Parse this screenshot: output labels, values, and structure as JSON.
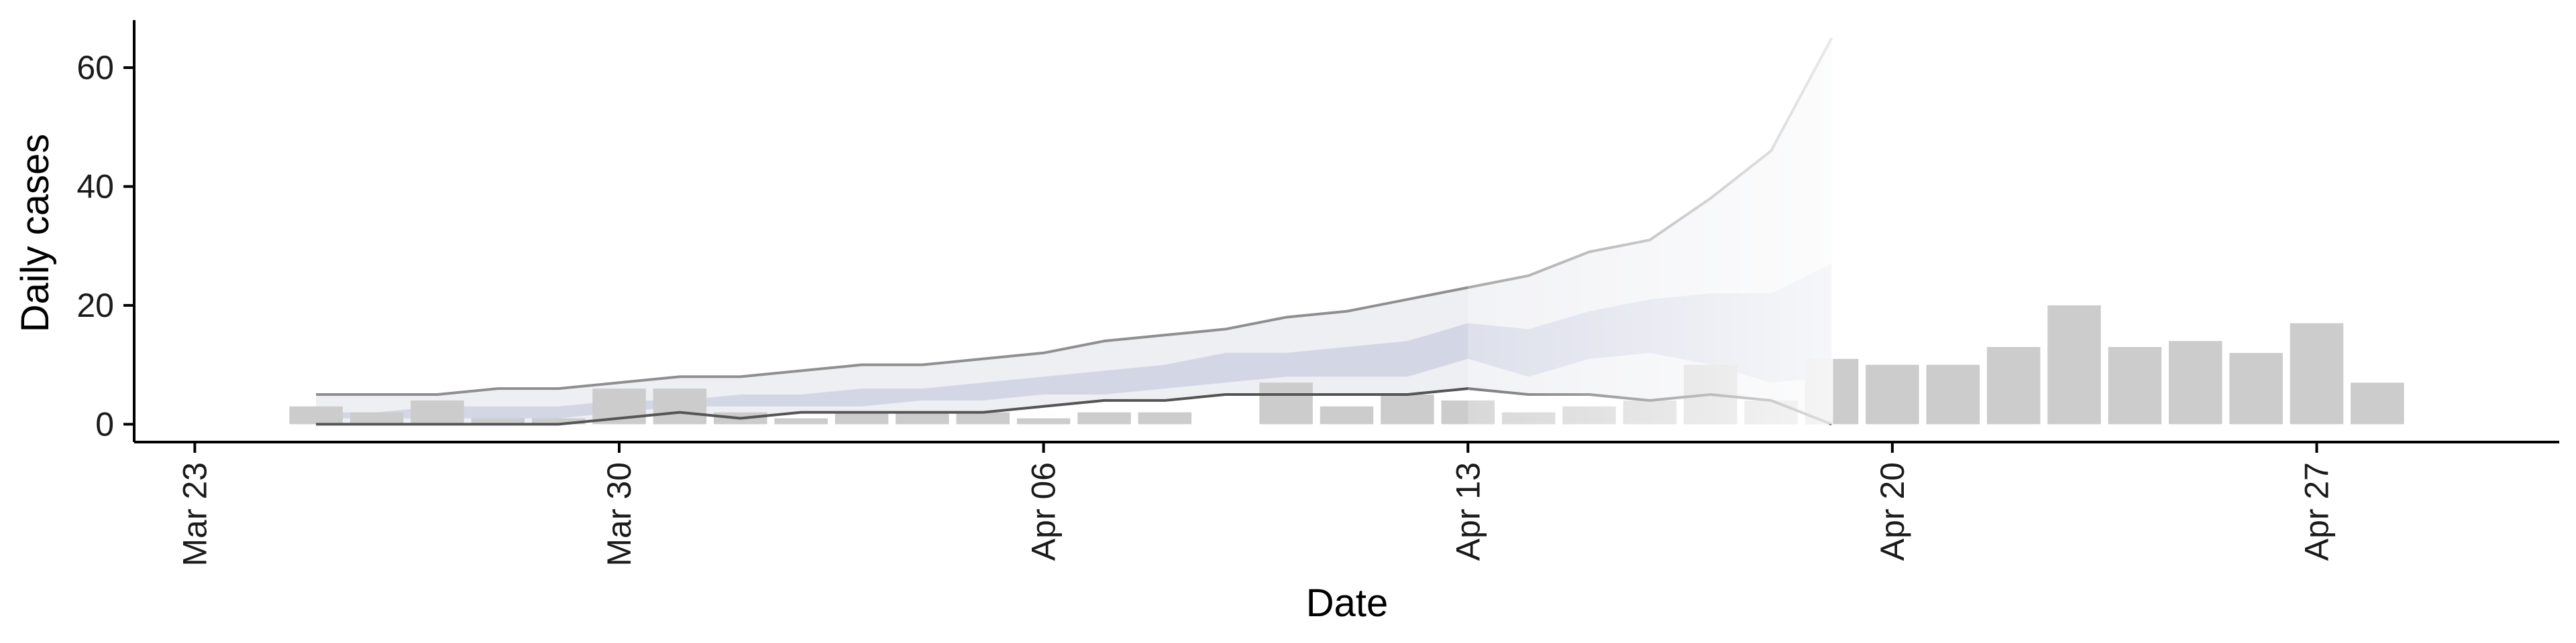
{
  "chart_data": {
    "type": "bar",
    "xlabel": "Date",
    "ylabel": "Daily cases",
    "xlim": [
      "2020-03-22",
      "2020-05-01"
    ],
    "ylim": [
      -3,
      68
    ],
    "x_ticks": [
      {
        "date": "2020-03-23",
        "label": "Mar 23"
      },
      {
        "date": "2020-03-30",
        "label": "Mar 30"
      },
      {
        "date": "2020-04-06",
        "label": "Apr 06"
      },
      {
        "date": "2020-04-13",
        "label": "Apr 13"
      },
      {
        "date": "2020-04-20",
        "label": "Apr 20"
      },
      {
        "date": "2020-04-27",
        "label": "Apr 27"
      }
    ],
    "y_ticks": [
      0,
      20,
      40,
      60
    ],
    "grid": false,
    "legend": "none",
    "bars": [
      {
        "date": "2020-03-25",
        "value": 3
      },
      {
        "date": "2020-03-26",
        "value": 2
      },
      {
        "date": "2020-03-27",
        "value": 4
      },
      {
        "date": "2020-03-28",
        "value": 1
      },
      {
        "date": "2020-03-29",
        "value": 1
      },
      {
        "date": "2020-03-30",
        "value": 6
      },
      {
        "date": "2020-03-31",
        "value": 6
      },
      {
        "date": "2020-04-01",
        "value": 2
      },
      {
        "date": "2020-04-02",
        "value": 1
      },
      {
        "date": "2020-04-03",
        "value": 2
      },
      {
        "date": "2020-04-04",
        "value": 2
      },
      {
        "date": "2020-04-05",
        "value": 2
      },
      {
        "date": "2020-04-06",
        "value": 1
      },
      {
        "date": "2020-04-07",
        "value": 2
      },
      {
        "date": "2020-04-08",
        "value": 2
      },
      {
        "date": "2020-04-10",
        "value": 7
      },
      {
        "date": "2020-04-11",
        "value": 3
      },
      {
        "date": "2020-04-12",
        "value": 5
      },
      {
        "date": "2020-04-13",
        "value": 4
      },
      {
        "date": "2020-04-14",
        "value": 2
      },
      {
        "date": "2020-04-15",
        "value": 3
      },
      {
        "date": "2020-04-16",
        "value": 4
      },
      {
        "date": "2020-04-17",
        "value": 10
      },
      {
        "date": "2020-04-18",
        "value": 4
      },
      {
        "date": "2020-04-19",
        "value": 11
      },
      {
        "date": "2020-04-20",
        "value": 10
      },
      {
        "date": "2020-04-21",
        "value": 10
      },
      {
        "date": "2020-04-22",
        "value": 13
      },
      {
        "date": "2020-04-23",
        "value": 20
      },
      {
        "date": "2020-04-24",
        "value": 13
      },
      {
        "date": "2020-04-25",
        "value": 14
      },
      {
        "date": "2020-04-26",
        "value": 12
      },
      {
        "date": "2020-04-27",
        "value": 17
      },
      {
        "date": "2020-04-28",
        "value": 7
      }
    ],
    "estimate": {
      "dates": [
        "2020-03-25",
        "2020-03-26",
        "2020-03-27",
        "2020-03-28",
        "2020-03-29",
        "2020-03-30",
        "2020-03-31",
        "2020-04-01",
        "2020-04-02",
        "2020-04-03",
        "2020-04-04",
        "2020-04-05",
        "2020-04-06",
        "2020-04-07",
        "2020-04-08",
        "2020-04-09",
        "2020-04-10",
        "2020-04-11",
        "2020-04-12",
        "2020-04-13",
        "2020-04-14",
        "2020-04-15",
        "2020-04-16",
        "2020-04-17",
        "2020-04-18",
        "2020-04-19"
      ],
      "outer_lower": [
        0,
        0,
        0,
        0,
        0,
        1,
        2,
        1,
        2,
        2,
        2,
        2,
        3,
        4,
        4,
        5,
        5,
        5,
        5,
        6,
        5,
        5,
        4,
        5,
        4,
        0
      ],
      "outer_upper": [
        5,
        5,
        5,
        6,
        6,
        7,
        8,
        8,
        9,
        10,
        10,
        11,
        12,
        14,
        15,
        16,
        18,
        19,
        21,
        23,
        25,
        29,
        31,
        38,
        46,
        65
      ],
      "inner_lower": [
        1,
        1,
        1,
        1,
        1,
        2,
        3,
        3,
        3,
        3,
        4,
        4,
        5,
        5,
        6,
        7,
        8,
        8,
        8,
        11,
        8,
        11,
        12,
        10,
        7,
        8
      ],
      "inner_upper": [
        2,
        2,
        3,
        3,
        3,
        4,
        4,
        5,
        5,
        6,
        6,
        7,
        8,
        9,
        10,
        12,
        12,
        13,
        14,
        17,
        16,
        19,
        21,
        22,
        22,
        27
      ],
      "center": [
        1.5,
        1.5,
        2,
        2,
        2,
        3,
        3.5,
        4,
        4,
        4.5,
        5,
        5.5,
        6.5,
        7,
        8,
        9.5,
        10,
        10.5,
        11,
        14,
        12,
        15,
        16.5,
        16,
        14.5,
        17.5
      ]
    },
    "colors": {
      "bar": "#cccccc",
      "outer_band": "#e8e9ef",
      "inner_band": "#c9cde0",
      "band_line_upper": "#8f8f8f",
      "band_line_lower": "#555555",
      "axis": "#000000",
      "text": "#1a1a1a"
    }
  }
}
